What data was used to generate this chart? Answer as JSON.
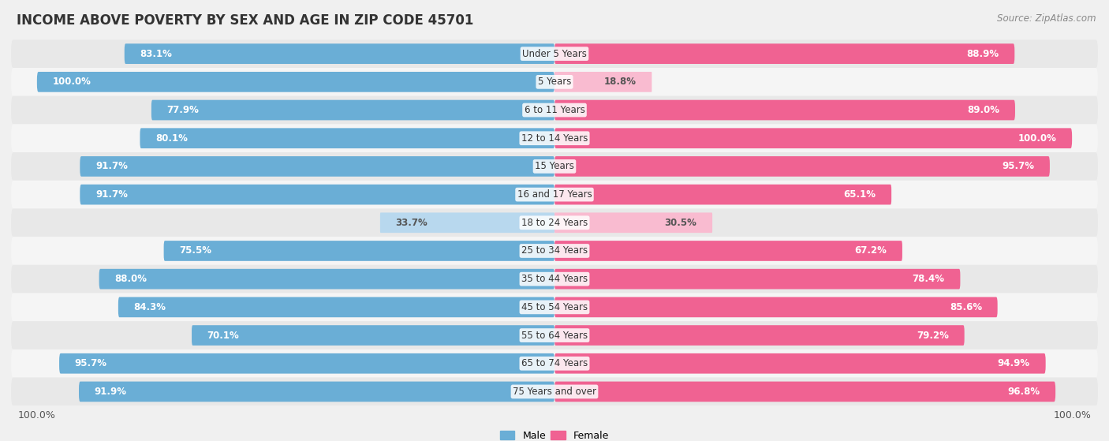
{
  "title": "INCOME ABOVE POVERTY BY SEX AND AGE IN ZIP CODE 45701",
  "source": "Source: ZipAtlas.com",
  "categories": [
    "Under 5 Years",
    "5 Years",
    "6 to 11 Years",
    "12 to 14 Years",
    "15 Years",
    "16 and 17 Years",
    "18 to 24 Years",
    "25 to 34 Years",
    "35 to 44 Years",
    "45 to 54 Years",
    "55 to 64 Years",
    "65 to 74 Years",
    "75 Years and over"
  ],
  "male": [
    83.1,
    100.0,
    77.9,
    80.1,
    91.7,
    91.7,
    33.7,
    75.5,
    88.0,
    84.3,
    70.1,
    95.7,
    91.9
  ],
  "female": [
    88.9,
    18.8,
    89.0,
    100.0,
    95.7,
    65.1,
    30.5,
    67.2,
    78.4,
    85.6,
    79.2,
    94.9,
    96.8
  ],
  "male_color": "#6aaed6",
  "male_color_light": "#b8d8ee",
  "female_color": "#f06292",
  "female_color_light": "#f9bbd0",
  "male_label_color": "#ffffff",
  "female_label_color": "#ffffff",
  "bar_height": 0.72,
  "background_color": "#f0f0f0",
  "row_bg_even": "#e8e8e8",
  "row_bg_odd": "#f5f5f5",
  "xlim": 105,
  "title_fontsize": 12,
  "source_fontsize": 8.5,
  "label_fontsize": 8.5,
  "category_fontsize": 8.5,
  "legend_fontsize": 9,
  "light_threshold": 50
}
